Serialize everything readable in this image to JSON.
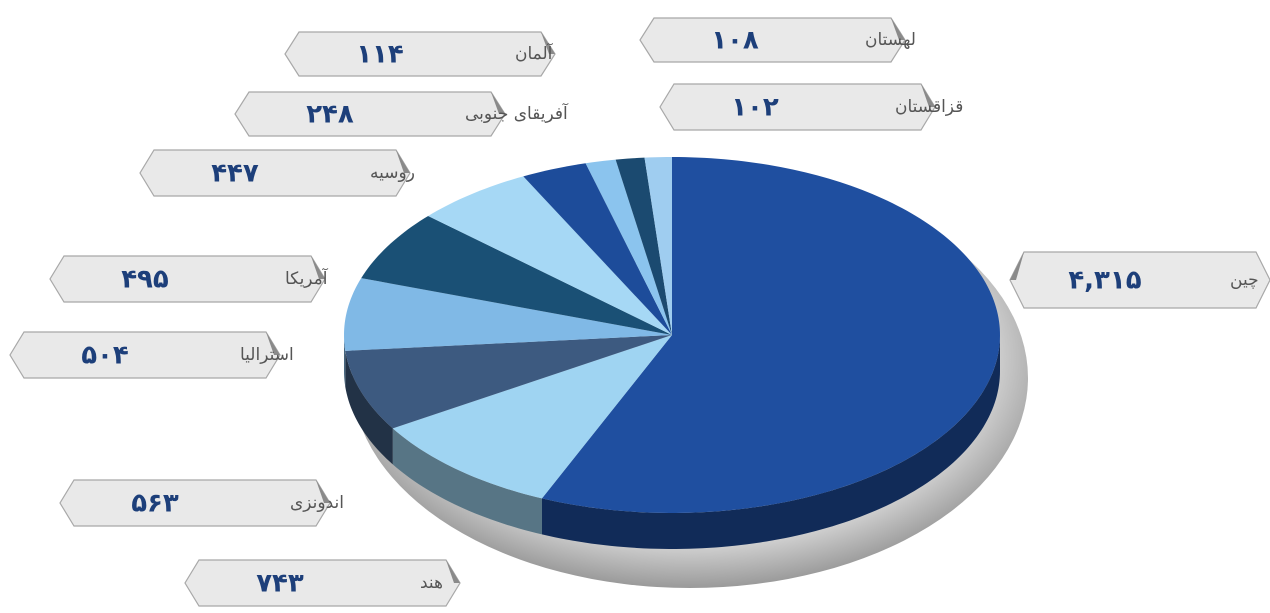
{
  "chart_data": {
    "type": "pie",
    "categories": [
      "چین",
      "هند",
      "اندونزی",
      "استرالیا",
      "آمریکا",
      "روسیه",
      "آفریقای جنوبی",
      "آلمان",
      "لهستان",
      "قزاقستان"
    ],
    "values": [
      4315,
      743,
      563,
      504,
      495,
      447,
      248,
      114,
      108,
      102
    ],
    "value_labels": [
      "۴,۳۱۵",
      "۷۴۳",
      "۵۶۳",
      "۵۰۴",
      "۴۹۵",
      "۴۴۷",
      "۲۴۸",
      "۱۱۴",
      "۱۰۸",
      "۱۰۲"
    ],
    "colors": [
      "#1f4fa0",
      "#9fd4f2",
      "#3d5a80",
      "#80b9e6",
      "#1a5075",
      "#a6d8f5",
      "#1d4c9a",
      "#8bc4ee",
      "#1b4a70",
      "#9fcdf0"
    ]
  }
}
